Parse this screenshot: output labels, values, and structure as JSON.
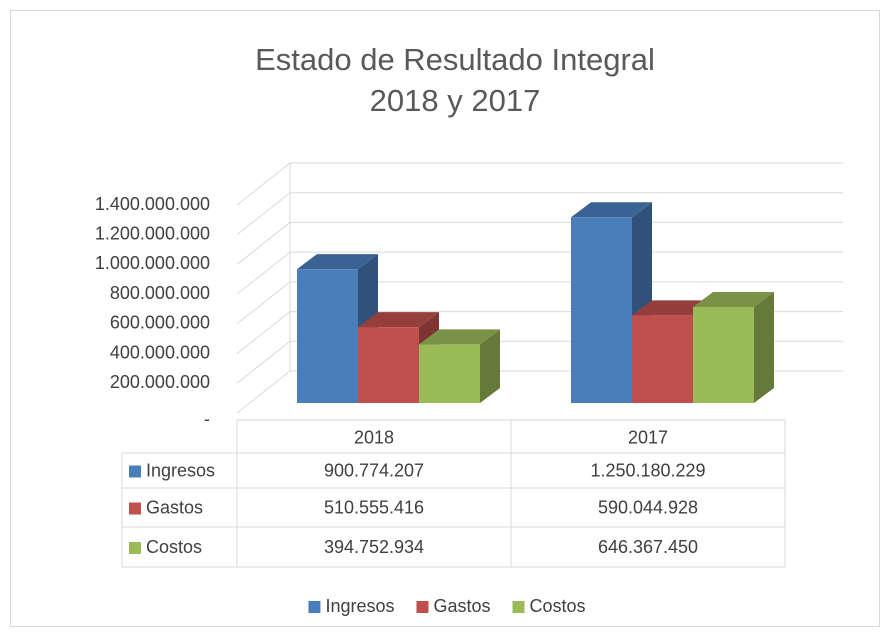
{
  "chart_data": {
    "type": "bar3d",
    "title": "Estado de Resultado Integral",
    "subtitle": "2018 y 2017",
    "categories": [
      "2018",
      "2017"
    ],
    "series": [
      {
        "name": "Ingresos",
        "color": "#4a7ebb",
        "values": [
          900774207,
          1250180229
        ],
        "value_labels": [
          "900.774.207",
          "1.250.180.229"
        ]
      },
      {
        "name": "Gastos",
        "color": "#c0504d",
        "values": [
          510555416,
          590044928
        ],
        "value_labels": [
          "510.555.416",
          "590.044.928"
        ]
      },
      {
        "name": "Costos",
        "color": "#9bbb59",
        "values": [
          394752934,
          646367450
        ],
        "value_labels": [
          "394.752.934",
          "646.367.450"
        ]
      }
    ],
    "ylim": [
      0,
      1400000000
    ],
    "yticks": [
      {
        "value": 0,
        "label": "-"
      },
      {
        "value": 200000000,
        "label": "200.000.000"
      },
      {
        "value": 400000000,
        "label": "400.000.000"
      },
      {
        "value": 600000000,
        "label": "600.000.000"
      },
      {
        "value": 800000000,
        "label": "800.000.000"
      },
      {
        "value": 1000000000,
        "label": "1.000.000.000"
      },
      {
        "value": 1200000000,
        "label": "1.200.000.000"
      },
      {
        "value": 1400000000,
        "label": "1.400.000.000"
      }
    ],
    "grid": true,
    "legend": "bottom",
    "data_table": true
  }
}
